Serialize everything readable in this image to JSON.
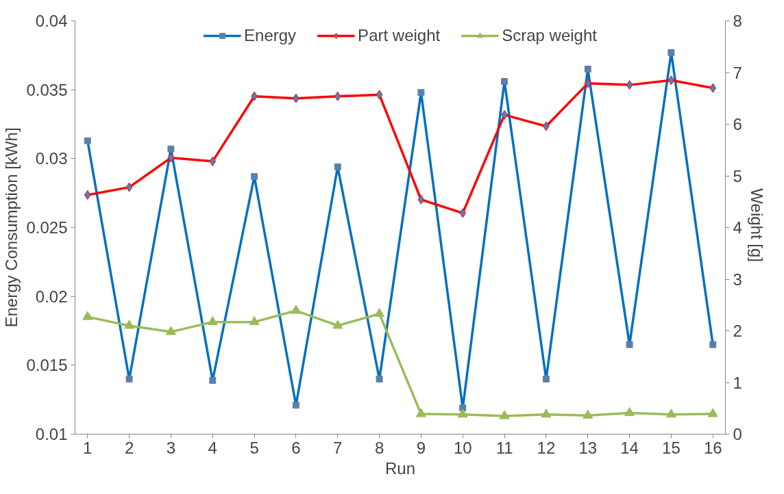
{
  "chart_data": {
    "type": "line",
    "xlabel": "Run",
    "ylabel": "Energy Consumption [kWh]",
    "y2label": "Weight  [g]",
    "x": [
      1,
      2,
      3,
      4,
      5,
      6,
      7,
      8,
      9,
      10,
      11,
      12,
      13,
      14,
      15,
      16
    ],
    "xlim": [
      0.7,
      16.3
    ],
    "xticks": [
      1,
      2,
      3,
      4,
      5,
      6,
      7,
      8,
      9,
      10,
      11,
      12,
      13,
      14,
      15,
      16
    ],
    "ylim": [
      0.01,
      0.04
    ],
    "yticks": [
      0.01,
      0.015,
      0.02,
      0.025,
      0.03,
      0.035,
      0.04
    ],
    "y2lim": [
      0,
      8
    ],
    "y2ticks": [
      0,
      1,
      2,
      3,
      4,
      5,
      6,
      7,
      8
    ],
    "grid": false,
    "legend": "top",
    "series": [
      {
        "name": "Energy",
        "color": "#0070c0",
        "marker": "square",
        "values": [
          0.0313,
          0.014,
          0.0307,
          0.0139,
          0.0287,
          0.0121,
          0.0294,
          0.014,
          0.0348,
          0.0119,
          0.0356,
          0.014,
          0.0365,
          0.0165,
          0.0377,
          0.0165
        ]
      },
      {
        "name": "Part weight",
        "color": "#ff0000",
        "marker": "diamond",
        "axis": "y2",
        "values": [
          4.63,
          4.78,
          5.35,
          5.28,
          6.54,
          6.5,
          6.54,
          6.57,
          4.54,
          4.28,
          6.18,
          5.96,
          6.79,
          6.76,
          6.85,
          6.7
        ]
      },
      {
        "name": "Scrap weight",
        "color": "#9bbb59",
        "marker": "triangle",
        "axis": "y2",
        "values": [
          2.27,
          2.1,
          1.98,
          2.17,
          2.17,
          2.39,
          2.1,
          2.33,
          0.39,
          0.38,
          0.35,
          0.38,
          0.36,
          0.41,
          0.38,
          0.39
        ]
      }
    ]
  }
}
